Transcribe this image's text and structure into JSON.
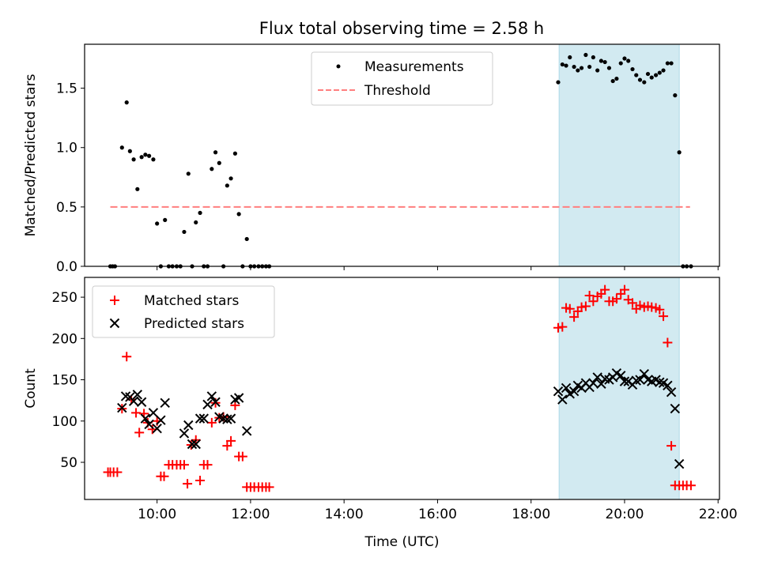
{
  "title": "Flux total observing time = 2.58 h",
  "xlabel": "Time (UTC)",
  "x_ticks": [
    {
      "hour": 10,
      "label": "10:00"
    },
    {
      "hour": 12,
      "label": "12:00"
    },
    {
      "hour": 14,
      "label": "14:00"
    },
    {
      "hour": 16,
      "label": "16:00"
    },
    {
      "hour": 18,
      "label": "18:00"
    },
    {
      "hour": 20,
      "label": "20:00"
    },
    {
      "hour": 22,
      "label": "22:00"
    }
  ],
  "colors": {
    "measurements": "#000000",
    "threshold": "#ff7f7f",
    "matched": "#ff0000",
    "predicted": "#000000",
    "span": "#add8e6"
  },
  "chart_data": [
    {
      "type": "scatter",
      "ylabel": "Matched/Predicted stars",
      "xlim": [
        8.45,
        22.03
      ],
      "ylim": [
        0,
        1.87
      ],
      "y_ticks": [
        {
          "value": 0.0,
          "label": "0.0"
        },
        {
          "value": 0.5,
          "label": "0.5"
        },
        {
          "value": 1.0,
          "label": "1.0"
        },
        {
          "value": 1.5,
          "label": "1.5"
        }
      ],
      "highlight_span": [
        18.6,
        21.17
      ],
      "threshold": {
        "y": 0.5,
        "x_range": [
          9.0,
          21.4
        ],
        "name": "Threshold"
      },
      "legend": [
        {
          "key": "measurements",
          "label": "Measurements"
        },
        {
          "key": "threshold",
          "label": "Threshold"
        }
      ],
      "legend_position": "upper-center",
      "series": [
        {
          "name": "Measurements",
          "x": [
            9.0,
            9.05,
            9.1,
            9.25,
            9.35,
            9.42,
            9.5,
            9.58,
            9.67,
            9.75,
            9.83,
            9.92,
            10.0,
            10.08,
            10.17,
            10.25,
            10.33,
            10.42,
            10.5,
            10.58,
            10.67,
            10.75,
            10.83,
            10.92,
            11.0,
            11.08,
            11.17,
            11.25,
            11.33,
            11.42,
            11.5,
            11.58,
            11.67,
            11.75,
            11.83,
            11.92,
            12.0,
            12.08,
            12.17,
            12.25,
            12.33,
            12.4,
            18.58,
            18.67,
            18.75,
            18.83,
            18.92,
            19.0,
            19.08,
            19.17,
            19.25,
            19.33,
            19.42,
            19.5,
            19.58,
            19.67,
            19.75,
            19.83,
            19.92,
            20.0,
            20.08,
            20.17,
            20.25,
            20.33,
            20.42,
            20.5,
            20.58,
            20.67,
            20.75,
            20.83,
            20.92,
            21.0,
            21.08,
            21.17,
            21.25,
            21.33,
            21.42
          ],
          "y": [
            0,
            0,
            0,
            1.0,
            1.38,
            0.97,
            0.9,
            0.65,
            0.92,
            0.94,
            0.93,
            0.9,
            0.36,
            0,
            0.39,
            0,
            0,
            0,
            0,
            0.29,
            0.78,
            0,
            0.37,
            0.45,
            0,
            0,
            0.82,
            0.96,
            0.87,
            0,
            0.68,
            0.74,
            0.95,
            0.44,
            0,
            0.23,
            0,
            0,
            0,
            0,
            0,
            0,
            1.55,
            1.7,
            1.69,
            1.76,
            1.68,
            1.65,
            1.67,
            1.78,
            1.68,
            1.76,
            1.65,
            1.73,
            1.72,
            1.67,
            1.56,
            1.58,
            1.71,
            1.75,
            1.73,
            1.66,
            1.61,
            1.57,
            1.55,
            1.62,
            1.59,
            1.61,
            1.63,
            1.65,
            1.71,
            1.71,
            1.44,
            0.96,
            0,
            0,
            0
          ]
        }
      ]
    },
    {
      "type": "scatter",
      "ylabel": "Count",
      "xlim": [
        8.45,
        22.03
      ],
      "ylim": [
        5,
        274
      ],
      "y_ticks": [
        {
          "value": 50,
          "label": "50"
        },
        {
          "value": 100,
          "label": "100"
        },
        {
          "value": 150,
          "label": "150"
        },
        {
          "value": 200,
          "label": "200"
        },
        {
          "value": 250,
          "label": "250"
        }
      ],
      "highlight_span": [
        18.6,
        21.17
      ],
      "legend": [
        {
          "key": "matched",
          "label": "Matched stars"
        },
        {
          "key": "predicted",
          "label": "Predicted stars"
        }
      ],
      "legend_position": "upper-left",
      "series": [
        {
          "name": "Matched stars",
          "marker": "plus",
          "x": [
            8.95,
            9.0,
            9.07,
            9.15,
            9.25,
            9.35,
            9.45,
            9.55,
            9.62,
            9.72,
            9.8,
            9.9,
            10.0,
            10.08,
            10.15,
            10.25,
            10.33,
            10.42,
            10.5,
            10.58,
            10.65,
            10.73,
            10.83,
            10.92,
            11.0,
            11.08,
            11.17,
            11.25,
            11.33,
            11.42,
            11.5,
            11.58,
            11.67,
            11.75,
            11.83,
            11.92,
            12.0,
            12.08,
            12.17,
            12.25,
            12.33,
            12.4,
            18.58,
            18.67,
            18.75,
            18.83,
            18.92,
            19.0,
            19.08,
            19.17,
            19.25,
            19.33,
            19.42,
            19.5,
            19.58,
            19.67,
            19.75,
            19.83,
            19.92,
            20.0,
            20.08,
            20.17,
            20.25,
            20.33,
            20.42,
            20.5,
            20.58,
            20.67,
            20.75,
            20.83,
            20.92,
            21.0,
            21.08,
            21.17,
            21.25,
            21.33,
            21.42
          ],
          "y": [
            38,
            38,
            38,
            38,
            115,
            178,
            126,
            110,
            86,
            109,
            98,
            90,
            100,
            33,
            33,
            47,
            47,
            47,
            47,
            47,
            24,
            71,
            77,
            28,
            47,
            47,
            98,
            122,
            104,
            105,
            70,
            76,
            119,
            57,
            57,
            20,
            20,
            20,
            20,
            20,
            20,
            20,
            213,
            214,
            237,
            236,
            226,
            233,
            238,
            239,
            252,
            245,
            251,
            254,
            259,
            245,
            245,
            248,
            254,
            259,
            247,
            243,
            236,
            240,
            238,
            239,
            238,
            237,
            235,
            227,
            195,
            70,
            22,
            22,
            22,
            22,
            22
          ]
        },
        {
          "name": "Predicted stars",
          "marker": "x",
          "x": [
            9.25,
            9.33,
            9.42,
            9.5,
            9.58,
            9.67,
            9.75,
            9.83,
            9.92,
            10.0,
            10.08,
            10.17,
            10.58,
            10.67,
            10.75,
            10.83,
            10.92,
            11.0,
            11.08,
            11.17,
            11.25,
            11.33,
            11.42,
            11.5,
            11.58,
            11.67,
            11.75,
            11.92,
            18.58,
            18.67,
            18.75,
            18.83,
            18.92,
            19.0,
            19.08,
            19.17,
            19.25,
            19.33,
            19.42,
            19.5,
            19.58,
            19.67,
            19.75,
            19.83,
            19.92,
            20.0,
            20.08,
            20.17,
            20.25,
            20.33,
            20.42,
            20.5,
            20.58,
            20.67,
            20.75,
            20.83,
            20.92,
            21.0,
            21.08,
            21.17
          ],
          "y": [
            116,
            130,
            129,
            124,
            132,
            123,
            103,
            96,
            110,
            91,
            101,
            122,
            85,
            95,
            72,
            72,
            103,
            103,
            120,
            130,
            123,
            105,
            103,
            102,
            103,
            126,
            128,
            88,
            136,
            126,
            140,
            133,
            136,
            143,
            140,
            146,
            141,
            146,
            153,
            145,
            151,
            150,
            153,
            158,
            155,
            148,
            148,
            144,
            149,
            150,
            157,
            150,
            148,
            150,
            147,
            146,
            143,
            135,
            115,
            48
          ]
        }
      ]
    }
  ]
}
